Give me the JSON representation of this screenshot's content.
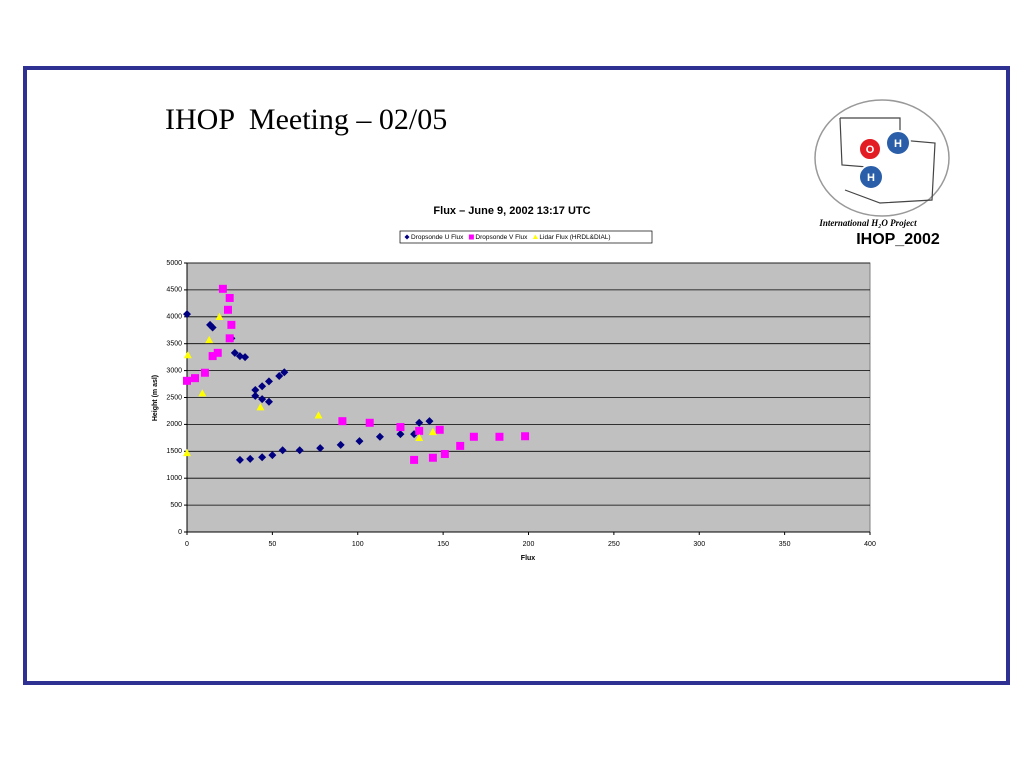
{
  "slide": {
    "title": "IHOP  Meeting – 02/05",
    "logo": {
      "circle_o": "O",
      "circle_h1": "H",
      "circle_h2": "H",
      "caption": "International H₂O Project",
      "name": "IHOP_2002"
    }
  },
  "chart_data": {
    "type": "scatter",
    "title": "Flux – June 9, 2002 13:17 UTC",
    "x_label": "Flux",
    "y_label": "Height (m asl)",
    "xlim": [
      0,
      400
    ],
    "xticks": [
      0,
      50,
      100,
      150,
      200,
      250,
      300,
      350,
      400
    ],
    "ylim": [
      0,
      5000
    ],
    "yticks": [
      0,
      500,
      1000,
      1500,
      2000,
      2500,
      3000,
      3500,
      4000,
      4500,
      5000
    ],
    "grid": true,
    "series": [
      {
        "name": "Dropsonde U Flux",
        "color": "#000080",
        "marker": "diamond",
        "x": [
          0,
          13.5,
          15,
          26,
          28,
          31,
          34,
          57,
          54,
          48,
          44,
          40,
          40,
          44,
          48,
          31,
          37,
          44,
          50,
          56,
          66,
          78,
          90,
          101,
          113,
          125,
          133,
          136,
          142
        ],
        "values": [
          4050,
          3850,
          3800,
          3600,
          3330,
          3270,
          3250,
          2970,
          2900,
          2800,
          2710,
          2640,
          2530,
          2470,
          2420,
          1340,
          1360,
          1390,
          1430,
          1520,
          1520,
          1560,
          1620,
          1690,
          1770,
          1820,
          1820,
          2030,
          2060
        ]
      },
      {
        "name": "Dropsonde V Flux",
        "color": "#ff00ff",
        "marker": "square",
        "x": [
          21,
          25,
          24,
          26,
          25,
          18,
          15,
          10.5,
          4.7,
          0,
          91,
          107,
          125,
          136,
          148,
          133,
          144,
          151,
          160,
          168,
          183,
          198
        ],
        "values": [
          4520,
          4350,
          4130,
          3850,
          3600,
          3330,
          3270,
          2960,
          2860,
          2810,
          2060,
          2030,
          1950,
          1880,
          1900,
          1340,
          1380,
          1450,
          1600,
          1770,
          1770,
          1780
        ]
      },
      {
        "name": "Lidar Flux (HRDL&DIAL)",
        "color": "#ffff00",
        "marker": "triangle",
        "x": [
          0,
          0.5,
          9,
          13,
          19,
          43,
          77,
          136,
          144
        ],
        "values": [
          1470,
          3290,
          2580,
          3570,
          4000,
          2320,
          2170,
          1750,
          1860
        ]
      }
    ]
  }
}
